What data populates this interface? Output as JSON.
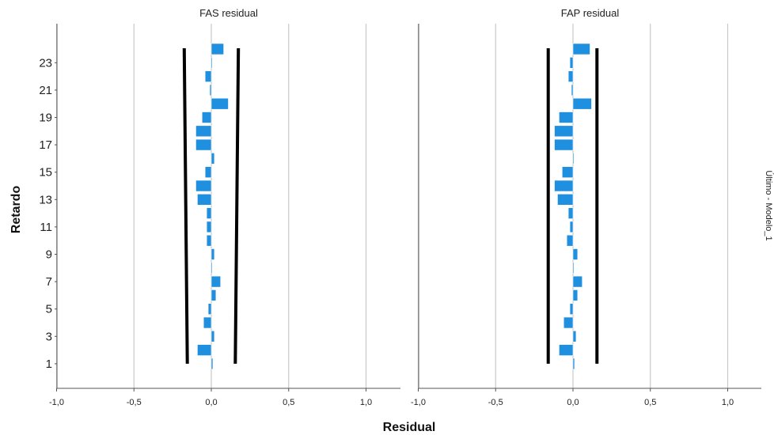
{
  "chart_data": {
    "type": "bar",
    "orientation": "horizontal",
    "xlabel": "Residual",
    "ylabel": "Retardo",
    "side_label": "Último - Modelo_1",
    "xlim": [
      -1.0,
      1.2
    ],
    "ylim": [
      0,
      25
    ],
    "x_ticks": [
      "-1,0",
      "-0,5",
      "0,0",
      "0,5",
      "1,0"
    ],
    "y_ticks": [
      "1",
      "3",
      "5",
      "7",
      "9",
      "11",
      "13",
      "15",
      "17",
      "19",
      "21",
      "23"
    ],
    "grid": "vertical",
    "colors": {
      "bar": "#1f8fe0",
      "bar_edge": "#ffffff",
      "confidence": "#000000",
      "grid": "#c8c8c8",
      "axis": "#555555"
    },
    "lags": [
      1,
      2,
      3,
      4,
      5,
      6,
      7,
      8,
      9,
      10,
      11,
      12,
      13,
      14,
      15,
      16,
      17,
      18,
      19,
      20,
      21,
      22,
      23,
      24
    ],
    "panels": [
      {
        "title": "FAS residual",
        "values": [
          0.01,
          -0.09,
          0.02,
          -0.05,
          -0.02,
          0.03,
          0.06,
          0.0,
          0.02,
          -0.03,
          -0.03,
          -0.03,
          -0.09,
          -0.1,
          -0.04,
          0.02,
          -0.1,
          -0.1,
          -0.06,
          0.11,
          -0.01,
          -0.04,
          0.0,
          0.08
        ],
        "conf_upper": [
          0.155,
          0.175
        ],
        "conf_lower": [
          -0.155,
          -0.175
        ]
      },
      {
        "title": "FAP residual",
        "values": [
          0.01,
          -0.09,
          0.02,
          -0.06,
          -0.02,
          0.03,
          0.06,
          0.0,
          0.03,
          -0.04,
          -0.02,
          -0.03,
          -0.1,
          -0.12,
          -0.07,
          0.0,
          -0.12,
          -0.12,
          -0.09,
          0.12,
          -0.01,
          -0.03,
          -0.02,
          0.11
        ],
        "conf_upper": [
          0.155,
          0.155
        ],
        "conf_lower": [
          -0.16,
          -0.16
        ]
      }
    ]
  }
}
